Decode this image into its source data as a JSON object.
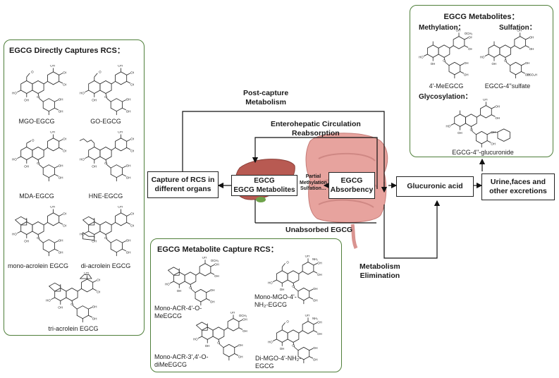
{
  "panel_direct": {
    "title": "EGCG Directly Captures RCS：",
    "items": [
      "MGO-EGCG",
      "GO-EGCG",
      "MDA-EGCG",
      "HNE-EGCG",
      "mono-acrolein EGCG",
      "di-acrolein EGCG",
      "tri-acrolein EGCG"
    ]
  },
  "panel_metabolites": {
    "title": "EGCG Metabolites：",
    "methylation": "Methylation：",
    "sulfation": "Sulfation：",
    "glycosylation": "Glycosylation：",
    "item_1": "4'-MeEGCG",
    "item_2": "EGCG-4''sulfate",
    "item_3": "EGCG-4''-glucuronide"
  },
  "panel_capture": {
    "title": "EGCG Metabolite Capture RCS：",
    "item_1": "Mono-ACR-4'-O-MeEGCG",
    "item_2": "Mono-MGO-4'-NH₂-EGCG",
    "item_3": "Mono-ACR-3',4'-O-diMeEGCG",
    "item_4": "Di-MGO-4'-NH₂-EGCG"
  },
  "flow": {
    "post_capture": "Post-capture\nMetabolism",
    "enterohepatic": "Enterohepatic Circulation\nReabsorption",
    "liver_box": "EGCG\nEGCG Metabolites",
    "partial": "Partial\nMethylation\nSulfation…",
    "absorbency": "EGCG\nAbsorbency",
    "capture_organs": "Capture of RCS in\ndifferent organs",
    "unabsorbed": "Unabsorbed EGCG",
    "metabolism_elim": "Metabolism\nElimination",
    "glucuronic": "Glucuronic acid",
    "urine": "Urine,faces and\nother excretions"
  }
}
